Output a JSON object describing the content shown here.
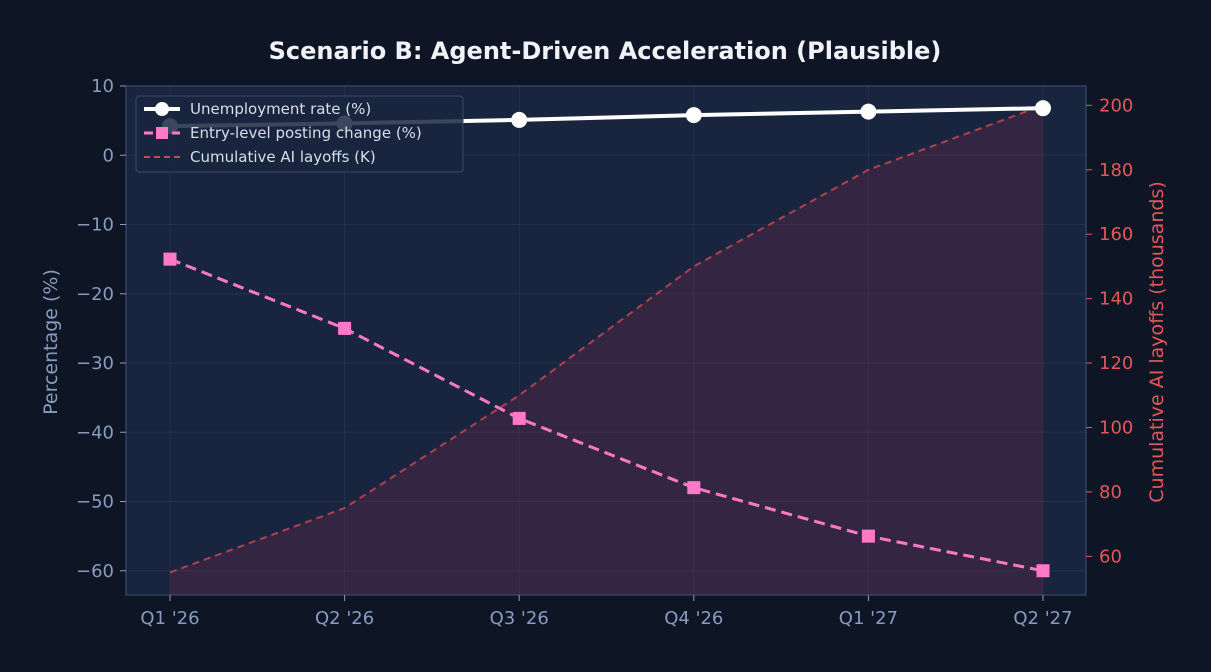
{
  "chart_data": {
    "type": "line",
    "title": "Scenario B: Agent-Driven Acceleration (Plausible)",
    "categories": [
      "Q1 '26",
      "Q2 '26",
      "Q3 '26",
      "Q4 '26",
      "Q1 '27",
      "Q2 '27"
    ],
    "ylabel": "Percentage (%)",
    "y2label": "Cumulative AI layoffs (thousands)",
    "ylim": [
      -63.5,
      10
    ],
    "y2lim": [
      48,
      206
    ],
    "yticks": [
      10,
      0,
      -10,
      -20,
      -30,
      -40,
      -50,
      -60
    ],
    "y2ticks": [
      200,
      180,
      160,
      140,
      120,
      100,
      80,
      60
    ],
    "grid": true,
    "legend_position": "top-left",
    "series": [
      {
        "name": "Unemployment rate (%)",
        "axis": "left",
        "style": "solid-circle",
        "color": "#ffffff",
        "values": [
          4.2,
          4.6,
          5.1,
          5.8,
          6.3,
          6.8
        ]
      },
      {
        "name": "Entry-level posting change (%)",
        "axis": "left",
        "style": "dashed-square",
        "color": "#ff7ac6",
        "values": [
          -15,
          -25,
          -38,
          -48,
          -55,
          -60
        ]
      },
      {
        "name": "Cumulative AI layoffs (K)",
        "axis": "right",
        "style": "dashed-area",
        "color": "#c8464f",
        "values": [
          55,
          75,
          110,
          150,
          180,
          200
        ]
      }
    ]
  },
  "colors": {
    "background": "#0e1626",
    "plot_background": "#19253f",
    "left_axis": "#8a9bbd",
    "right_axis": "#e2585a",
    "spine": "#3a4a6e"
  }
}
